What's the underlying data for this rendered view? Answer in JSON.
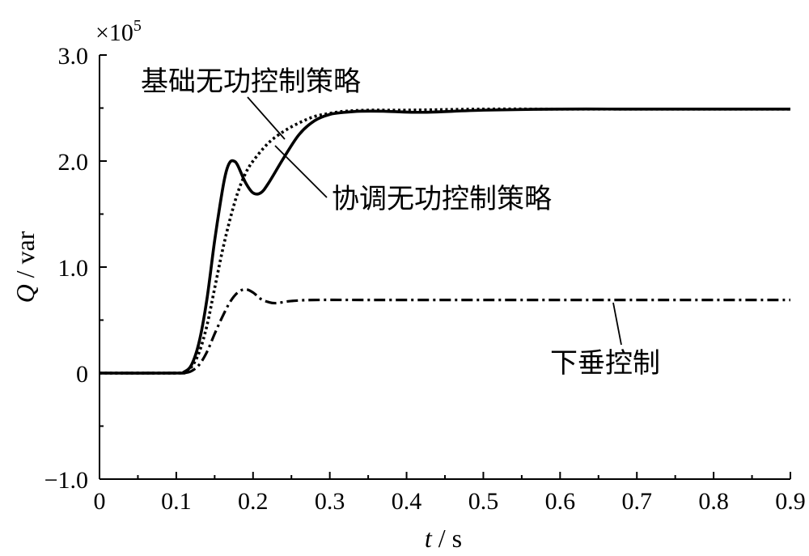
{
  "chart_data": {
    "type": "line",
    "title": "",
    "xlabel_var": "t",
    "xlabel_unit": " / s",
    "ylabel_var": "Q",
    "ylabel_unit": " / var",
    "y_multiplier_prefix": "×10",
    "y_multiplier_exp": "5",
    "xlim": [
      0,
      0.9
    ],
    "ylim": [
      -1.0,
      3.0
    ],
    "x_ticks": [
      0,
      0.1,
      0.2,
      0.3,
      0.4,
      0.5,
      0.6,
      0.7,
      0.8,
      0.9
    ],
    "x_tick_labels": [
      "0",
      "0.1",
      "0.2",
      "0.3",
      "0.4",
      "0.5",
      "0.6",
      "0.7",
      "0.8",
      "0.9"
    ],
    "y_ticks": [
      -1.0,
      0,
      1.0,
      2.0,
      3.0
    ],
    "y_tick_labels": [
      "−1.0",
      "0",
      "1.0",
      "2.0",
      "3.0"
    ],
    "grid": false,
    "series": [
      {
        "name": "基础无功控制策略",
        "style": "dotted",
        "color": "#000000",
        "x": [
          0,
          0.1,
          0.11,
          0.12,
          0.13,
          0.14,
          0.15,
          0.16,
          0.17,
          0.18,
          0.19,
          0.2,
          0.22,
          0.24,
          0.26,
          0.28,
          0.3,
          0.32,
          0.35,
          0.4,
          0.5,
          0.6,
          0.7,
          0.8,
          0.9
        ],
        "y": [
          0,
          0,
          0.01,
          0.06,
          0.2,
          0.45,
          0.8,
          1.15,
          1.45,
          1.7,
          1.88,
          2.0,
          2.17,
          2.28,
          2.36,
          2.42,
          2.45,
          2.47,
          2.48,
          2.48,
          2.49,
          2.49,
          2.49,
          2.49,
          2.49
        ]
      },
      {
        "name": "协调无功控制策略",
        "style": "solid",
        "color": "#000000",
        "x": [
          0,
          0.1,
          0.11,
          0.12,
          0.13,
          0.14,
          0.15,
          0.16,
          0.165,
          0.17,
          0.175,
          0.18,
          0.19,
          0.2,
          0.21,
          0.22,
          0.24,
          0.26,
          0.28,
          0.3,
          0.32,
          0.34,
          0.37,
          0.42,
          0.5,
          0.6,
          0.7,
          0.8,
          0.9
        ],
        "y": [
          0,
          0,
          0.01,
          0.08,
          0.3,
          0.7,
          1.25,
          1.72,
          1.9,
          1.99,
          2.0,
          1.96,
          1.8,
          1.7,
          1.7,
          1.79,
          2.03,
          2.25,
          2.38,
          2.44,
          2.46,
          2.47,
          2.47,
          2.46,
          2.48,
          2.49,
          2.49,
          2.49,
          2.49
        ]
      },
      {
        "name": "下垂控制",
        "style": "dashdot",
        "color": "#000000",
        "x": [
          0,
          0.1,
          0.11,
          0.12,
          0.13,
          0.14,
          0.15,
          0.16,
          0.17,
          0.18,
          0.19,
          0.2,
          0.21,
          0.22,
          0.23,
          0.25,
          0.28,
          0.35,
          0.5,
          0.7,
          0.9
        ],
        "y": [
          0,
          0,
          0.0,
          0.02,
          0.08,
          0.2,
          0.37,
          0.53,
          0.67,
          0.76,
          0.79,
          0.76,
          0.7,
          0.67,
          0.66,
          0.68,
          0.69,
          0.69,
          0.69,
          0.69,
          0.69
        ]
      }
    ],
    "annotations": [
      {
        "text": "基础无功控制策略",
        "series": "基础无功控制策略"
      },
      {
        "text": "协调无功控制策略",
        "series": "协调无功控制策略"
      },
      {
        "text": "下垂控制",
        "series": "下垂控制"
      }
    ]
  }
}
